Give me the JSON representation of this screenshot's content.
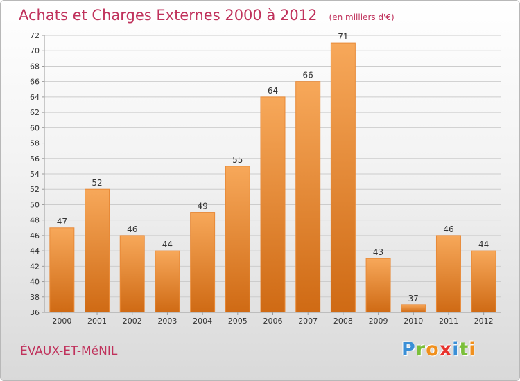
{
  "title": "Achats et Charges Externes 2000 à 2012",
  "unit": "(en milliers d'€)",
  "commune": "ÉVAUX-ET-MéNIL",
  "logo": {
    "text": "Proxiti",
    "letter_colors": [
      "#3a8fd6",
      "#7bbf3a",
      "#f0901e",
      "#e8332d",
      "#3a8fd6",
      "#7bbf3a",
      "#f0901e"
    ]
  },
  "colors": {
    "bar_top": "#f7a85a",
    "bar_bottom": "#cf6a14",
    "grid": "#cccccc",
    "title": "#c0325c"
  },
  "chart_data": {
    "type": "bar",
    "categories": [
      "2000",
      "2001",
      "2002",
      "2003",
      "2004",
      "2005",
      "2006",
      "2007",
      "2008",
      "2009",
      "2010",
      "2011",
      "2012"
    ],
    "values": [
      47,
      52,
      46,
      44,
      49,
      55,
      64,
      66,
      71,
      43,
      37,
      46,
      44
    ],
    "ylim": [
      36,
      72
    ],
    "yticks": [
      36,
      38,
      40,
      42,
      44,
      46,
      48,
      50,
      52,
      54,
      56,
      58,
      60,
      62,
      64,
      66,
      68,
      70,
      72
    ],
    "grid": true,
    "xlabel": "",
    "ylabel": ""
  }
}
